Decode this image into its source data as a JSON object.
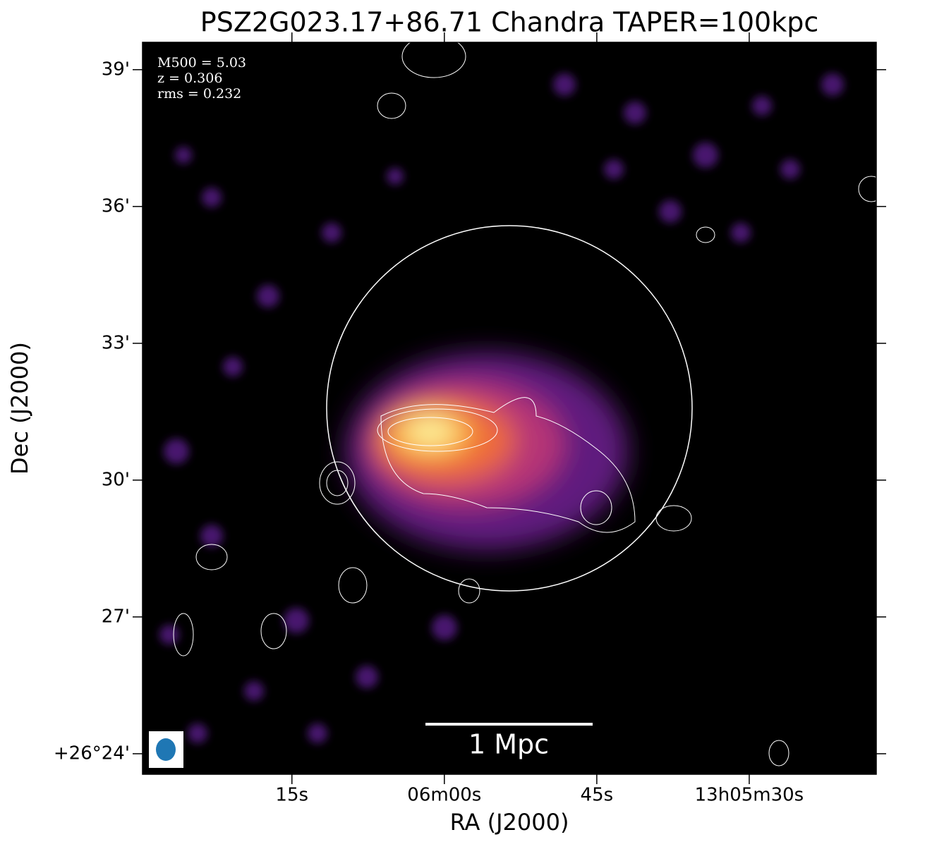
{
  "chart_data": {
    "type": "image",
    "title": "PSZ2G023.17+86.71 Chandra TAPER=100kpc",
    "xlabel": "RA (J2000)",
    "ylabel": "Dec (J2000)",
    "annotations": [
      "M500 = 5.03",
      "z = 0.306",
      "rms = 0.232"
    ],
    "scalebar_label": "1 Mpc",
    "xlim": [
      89.7,
      17.5
    ],
    "xticks": [
      {
        "value": 75,
        "label": "15s"
      },
      {
        "value": 60,
        "label": "06m00s"
      },
      {
        "value": 45,
        "label": "45s"
      },
      {
        "value": 30,
        "label": "13h05m30s"
      }
    ],
    "ylim": [
      23.55,
      39.6
    ],
    "yticks": [
      {
        "value": 24,
        "label": "+26°24'"
      },
      {
        "value": 27,
        "label": "27'"
      },
      {
        "value": 30,
        "label": "30'"
      },
      {
        "value": 33,
        "label": "33'"
      },
      {
        "value": 36,
        "label": "36'"
      },
      {
        "value": 39,
        "label": "39'"
      }
    ]
  }
}
